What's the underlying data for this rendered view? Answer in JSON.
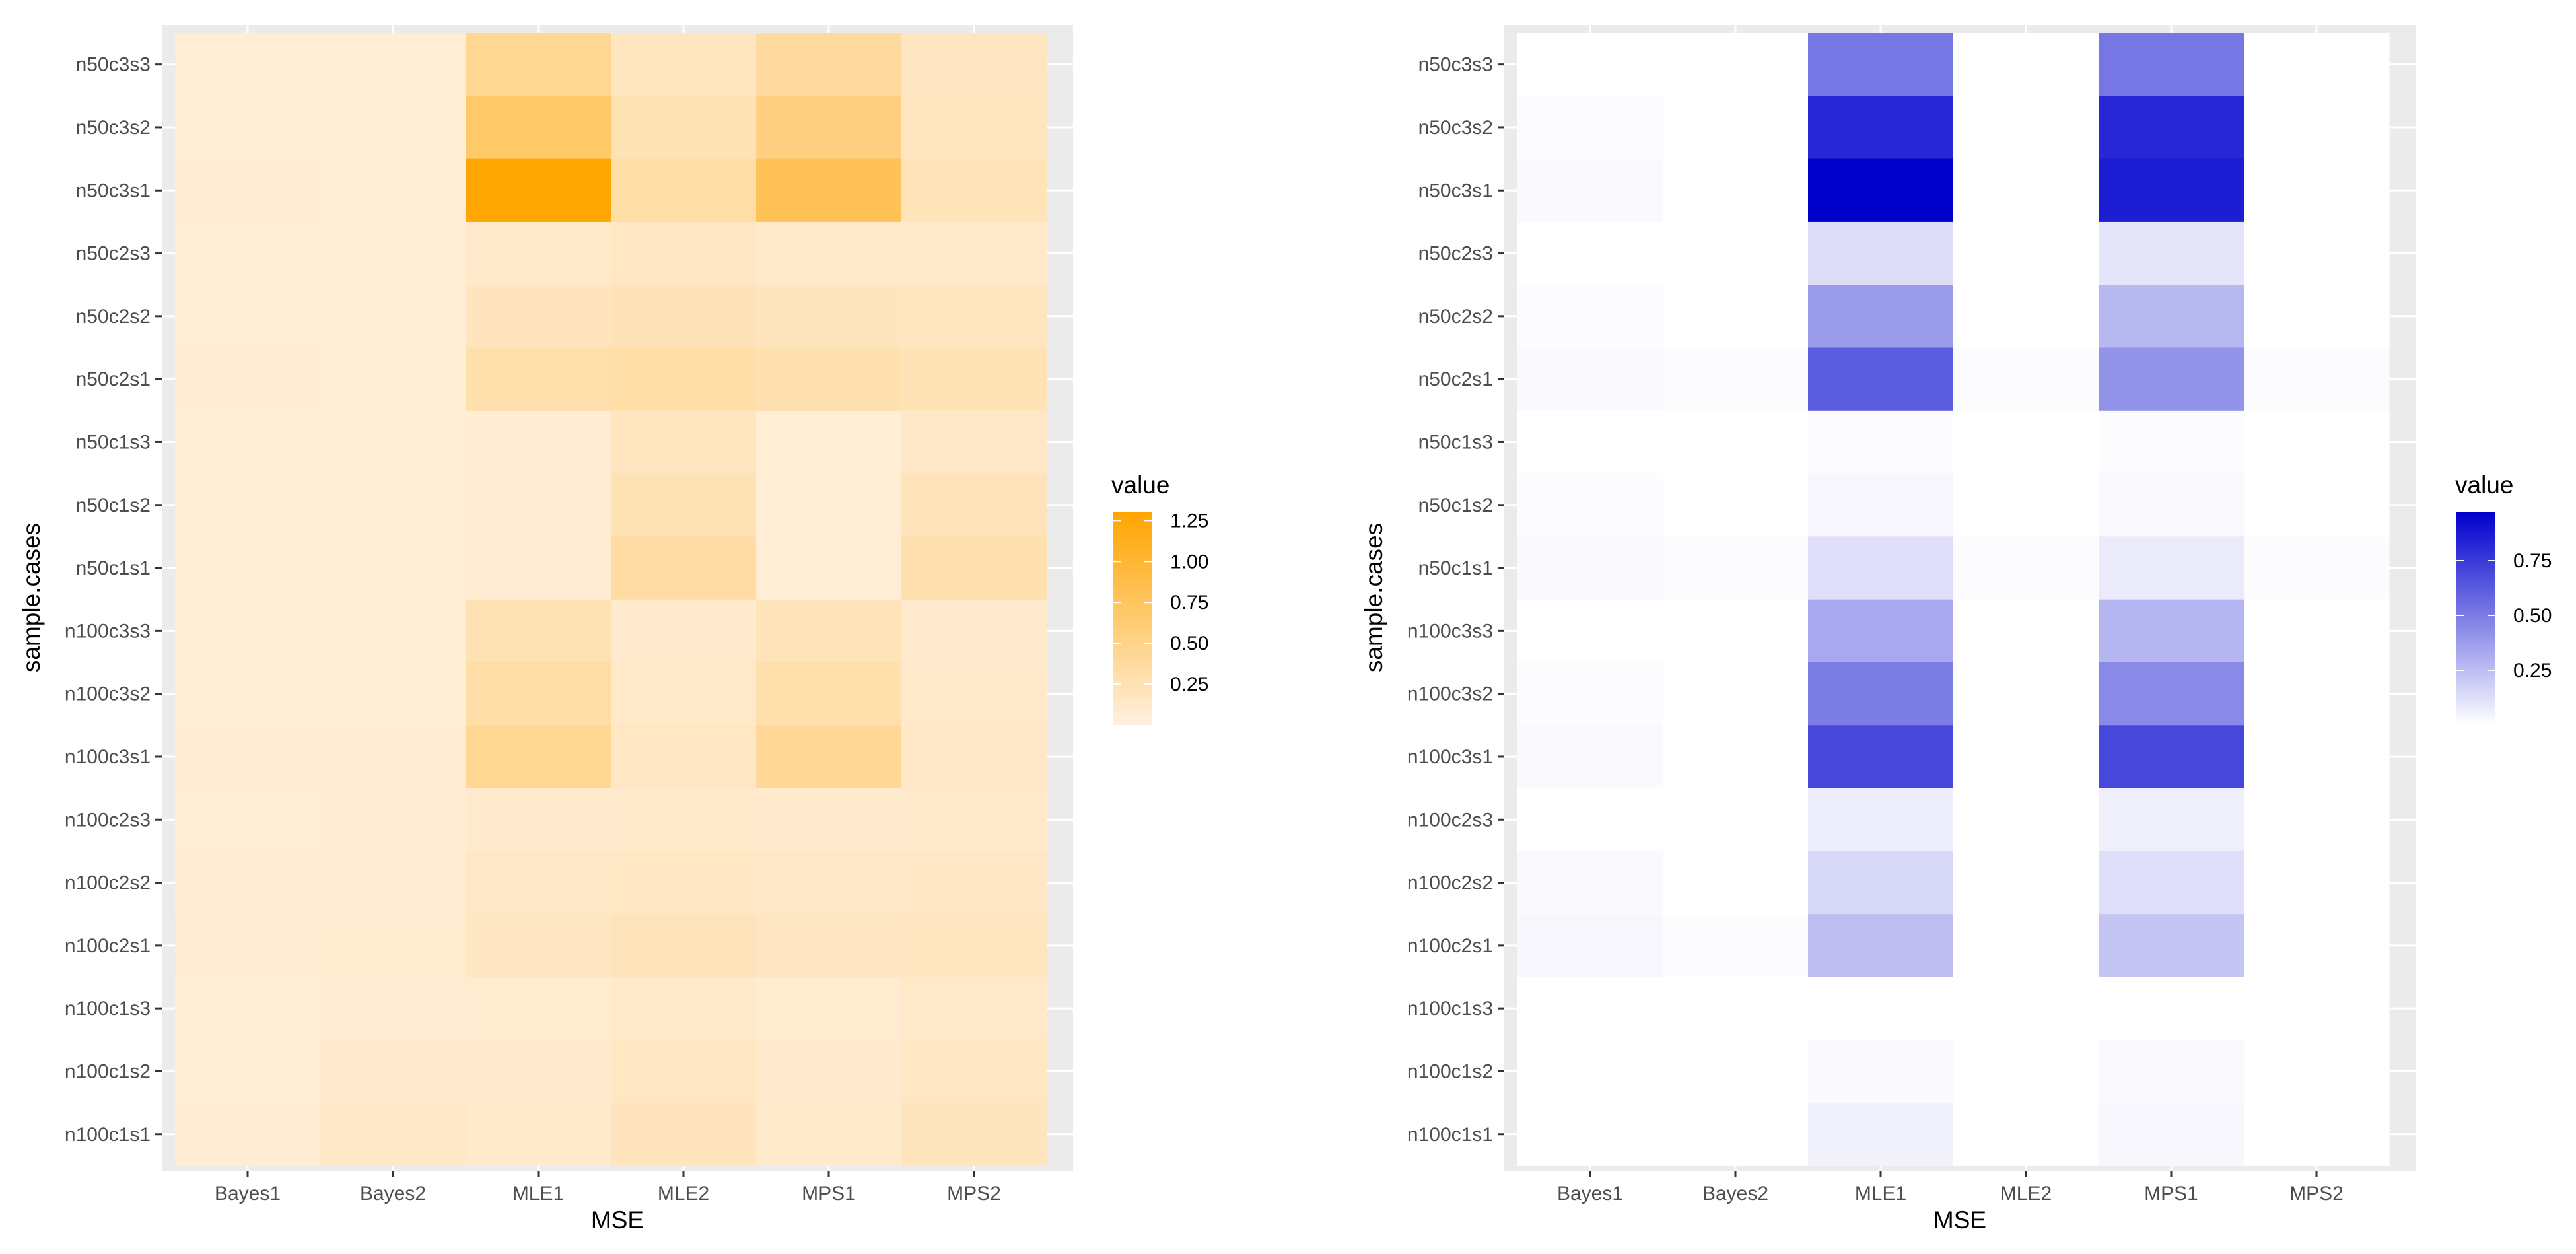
{
  "charts": [
    {
      "id": "left",
      "chart_data": {
        "type": "heatmap",
        "title": "",
        "xlabel": "MSE",
        "ylabel": "sample.cases",
        "x_categories": [
          "Bayes1",
          "Bayes2",
          "MLE1",
          "MLE2",
          "MPS1",
          "MPS2"
        ],
        "y_categories_top_to_bottom": [
          "n50c3s3",
          "n50c3s2",
          "n50c3s1",
          "n50c2s3",
          "n50c2s2",
          "n50c2s1",
          "n50c1s3",
          "n50c1s2",
          "n50c1s1",
          "n100c3s3",
          "n100c3s2",
          "n100c3s1",
          "n100c2s3",
          "n100c2s2",
          "n100c2s1",
          "n100c1s3",
          "n100c1s2",
          "n100c1s1"
        ],
        "values": [
          [
            0.06,
            0.06,
            0.45,
            0.18,
            0.38,
            0.17
          ],
          [
            0.06,
            0.06,
            0.68,
            0.25,
            0.55,
            0.18
          ],
          [
            0.07,
            0.06,
            1.28,
            0.33,
            0.8,
            0.22
          ],
          [
            0.06,
            0.06,
            0.12,
            0.16,
            0.12,
            0.12
          ],
          [
            0.06,
            0.06,
            0.2,
            0.23,
            0.19,
            0.18
          ],
          [
            0.07,
            0.06,
            0.3,
            0.32,
            0.28,
            0.24
          ],
          [
            0.06,
            0.06,
            0.07,
            0.18,
            0.06,
            0.14
          ],
          [
            0.06,
            0.06,
            0.07,
            0.25,
            0.06,
            0.21
          ],
          [
            0.06,
            0.06,
            0.07,
            0.35,
            0.06,
            0.28
          ],
          [
            0.06,
            0.06,
            0.25,
            0.1,
            0.22,
            0.1
          ],
          [
            0.06,
            0.06,
            0.33,
            0.13,
            0.3,
            0.12
          ],
          [
            0.07,
            0.07,
            0.45,
            0.16,
            0.42,
            0.14
          ],
          [
            0.06,
            0.07,
            0.1,
            0.12,
            0.1,
            0.12
          ],
          [
            0.07,
            0.08,
            0.14,
            0.16,
            0.14,
            0.15
          ],
          [
            0.08,
            0.09,
            0.17,
            0.21,
            0.17,
            0.18
          ],
          [
            0.06,
            0.08,
            0.09,
            0.13,
            0.09,
            0.13
          ],
          [
            0.06,
            0.1,
            0.1,
            0.16,
            0.1,
            0.16
          ],
          [
            0.07,
            0.14,
            0.11,
            0.2,
            0.11,
            0.19
          ]
        ],
        "color_range": [
          0,
          1.3
        ],
        "color_low": "#fff0df",
        "color_high": "#ffa500",
        "legend": {
          "title": "value",
          "position": "right",
          "breaks": [
            0.25,
            0.5,
            0.75,
            1.0,
            1.25
          ],
          "labels": [
            "0.25",
            "0.50",
            "0.75",
            "1.00",
            "1.25"
          ]
        }
      }
    },
    {
      "id": "right",
      "chart_data": {
        "type": "heatmap",
        "title": "",
        "xlabel": "MSE",
        "ylabel": "sample.cases",
        "x_categories": [
          "Bayes1",
          "Bayes2",
          "MLE1",
          "MLE2",
          "MPS1",
          "MPS2"
        ],
        "y_categories_top_to_bottom": [
          "n50c3s3",
          "n50c3s2",
          "n50c3s1",
          "n50c2s3",
          "n50c2s2",
          "n50c2s1",
          "n50c1s3",
          "n50c1s2",
          "n50c1s1",
          "n100c3s3",
          "n100c3s2",
          "n100c3s1",
          "n100c2s3",
          "n100c2s2",
          "n100c2s1",
          "n100c1s3",
          "n100c1s2",
          "n100c1s1"
        ],
        "values": [
          [
            0.0,
            0.0,
            0.52,
            0.0,
            0.52,
            0.0
          ],
          [
            0.01,
            0.0,
            0.82,
            0.0,
            0.82,
            0.0
          ],
          [
            0.02,
            0.0,
            1.0,
            0.0,
            0.86,
            0.0
          ],
          [
            0.0,
            0.0,
            0.13,
            0.0,
            0.1,
            0.0
          ],
          [
            0.01,
            0.0,
            0.38,
            0.0,
            0.27,
            0.0
          ],
          [
            0.02,
            0.01,
            0.62,
            0.01,
            0.41,
            0.01
          ],
          [
            0.0,
            0.0,
            0.01,
            0.0,
            0.01,
            0.0
          ],
          [
            0.01,
            0.0,
            0.03,
            0.0,
            0.02,
            0.0
          ],
          [
            0.02,
            0.01,
            0.12,
            0.01,
            0.08,
            0.01
          ],
          [
            0.0,
            0.0,
            0.33,
            0.0,
            0.28,
            0.0
          ],
          [
            0.01,
            0.0,
            0.5,
            0.0,
            0.45,
            0.0
          ],
          [
            0.02,
            0.0,
            0.7,
            0.0,
            0.7,
            0.0
          ],
          [
            0.0,
            0.0,
            0.07,
            0.0,
            0.06,
            0.0
          ],
          [
            0.02,
            0.0,
            0.15,
            0.0,
            0.12,
            0.0
          ],
          [
            0.03,
            0.01,
            0.25,
            0.0,
            0.22,
            0.0
          ],
          [
            0.0,
            0.0,
            0.0,
            0.0,
            0.0,
            0.0
          ],
          [
            0.0,
            0.0,
            0.02,
            0.0,
            0.02,
            0.0
          ],
          [
            0.0,
            0.0,
            0.05,
            0.0,
            0.03,
            0.0
          ]
        ],
        "color_range": [
          0,
          0.97
        ],
        "color_low": "#ffffff",
        "color_high": "#0000cd",
        "legend": {
          "title": "value",
          "position": "right",
          "breaks": [
            0.25,
            0.5,
            0.75
          ],
          "labels": [
            "0.25",
            "0.50",
            "0.75"
          ]
        }
      }
    }
  ]
}
